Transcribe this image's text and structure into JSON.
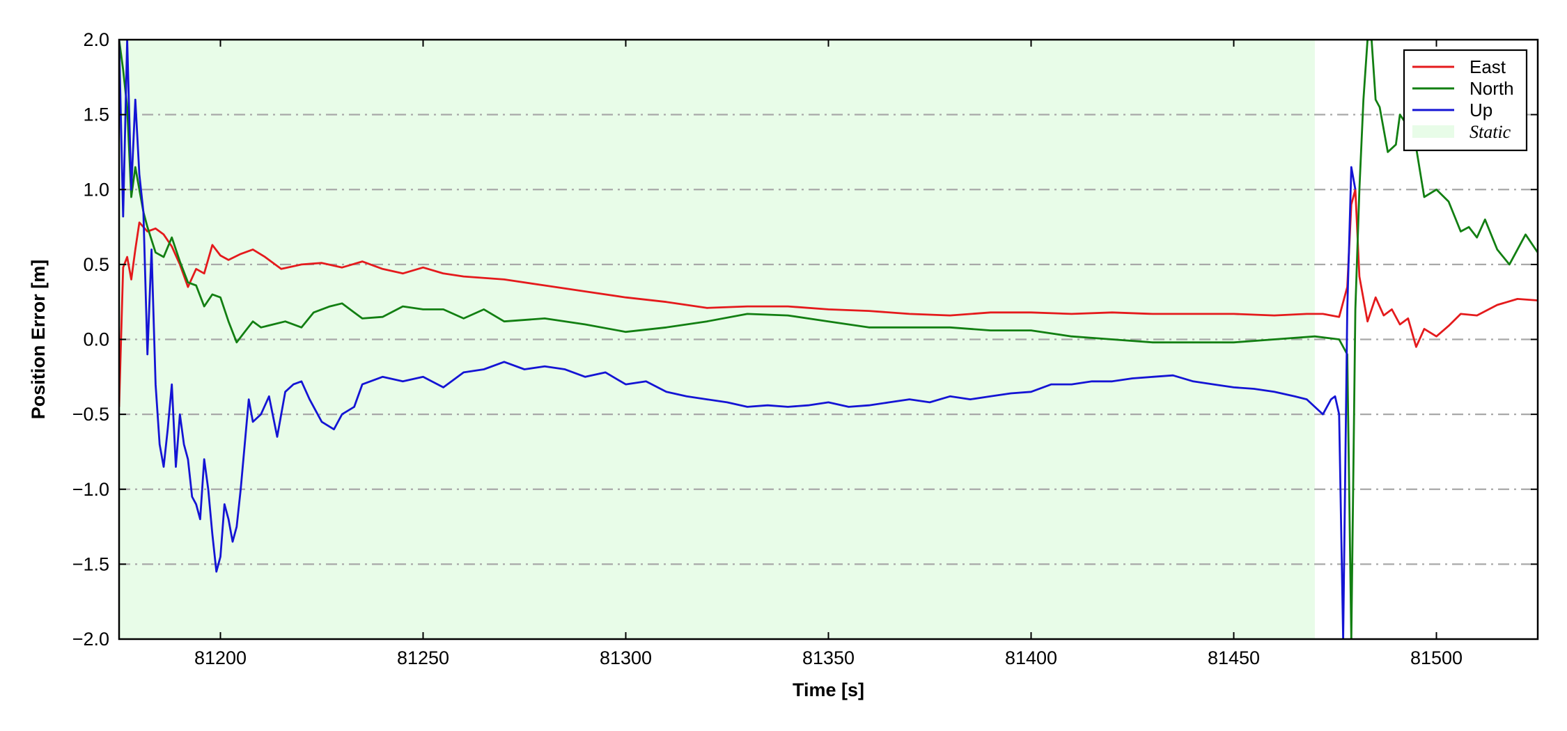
{
  "chart_data": {
    "type": "line",
    "xlabel": "Time [s]",
    "ylabel": "Position Error [m]",
    "xlim": [
      81175,
      81525
    ],
    "ylim": [
      -2.0,
      2.0
    ],
    "xticks": [
      81200,
      81250,
      81300,
      81350,
      81400,
      81450,
      81500
    ],
    "xtick_labels": [
      "81200",
      "81250",
      "81300",
      "81350",
      "81400",
      "81450",
      "81500"
    ],
    "yticks": [
      -2.0,
      -1.5,
      -1.0,
      -0.5,
      0.0,
      0.5,
      1.0,
      1.5,
      2.0
    ],
    "ytick_labels": [
      "−2.0",
      "−1.5",
      "−1.0",
      "−0.5",
      "0.0",
      "0.5",
      "1.0",
      "1.5",
      "2.0"
    ],
    "grid": "horizontal dash-dot",
    "legend_position": "top-right",
    "shaded_region": {
      "label": "Static",
      "x_start": 81175,
      "x_end": 81470,
      "color": "#e8fce8"
    },
    "series": [
      {
        "name": "East",
        "color": "#e41a1c",
        "x": [
          81175,
          81176,
          81177,
          81178,
          81179,
          81180,
          81182,
          81184,
          81186,
          81188,
          81190,
          81192,
          81194,
          81196,
          81198,
          81200,
          81202,
          81205,
          81208,
          81211,
          81215,
          81220,
          81225,
          81230,
          81235,
          81240,
          81245,
          81250,
          81255,
          81260,
          81270,
          81280,
          81290,
          81300,
          81310,
          81320,
          81330,
          81340,
          81350,
          81360,
          81370,
          81380,
          81390,
          81400,
          81410,
          81420,
          81430,
          81440,
          81450,
          81460,
          81468,
          81472,
          81476,
          81478,
          81479,
          81480,
          81481,
          81483,
          81485,
          81487,
          81489,
          81491,
          81493,
          81495,
          81497,
          81500,
          81503,
          81506,
          81510,
          81515,
          81520,
          81525
        ],
        "y": [
          -0.45,
          0.48,
          0.55,
          0.4,
          0.6,
          0.78,
          0.72,
          0.74,
          0.7,
          0.62,
          0.5,
          0.35,
          0.47,
          0.44,
          0.63,
          0.56,
          0.53,
          0.57,
          0.6,
          0.55,
          0.47,
          0.5,
          0.51,
          0.48,
          0.52,
          0.47,
          0.44,
          0.48,
          0.44,
          0.42,
          0.4,
          0.36,
          0.32,
          0.28,
          0.25,
          0.21,
          0.22,
          0.22,
          0.2,
          0.19,
          0.17,
          0.16,
          0.18,
          0.18,
          0.17,
          0.18,
          0.17,
          0.17,
          0.17,
          0.16,
          0.17,
          0.17,
          0.15,
          0.35,
          0.9,
          1.0,
          0.42,
          0.12,
          0.28,
          0.16,
          0.2,
          0.1,
          0.14,
          -0.05,
          0.07,
          0.02,
          0.09,
          0.17,
          0.16,
          0.23,
          0.27,
          0.26
        ]
      },
      {
        "name": "North",
        "color": "#127f12",
        "x": [
          81175,
          81176,
          81177,
          81178,
          81179,
          81180,
          81181,
          81182,
          81184,
          81186,
          81188,
          81190,
          81192,
          81194,
          81196,
          81198,
          81200,
          81202,
          81204,
          81206,
          81208,
          81210,
          81213,
          81216,
          81220,
          81223,
          81227,
          81230,
          81235,
          81240,
          81245,
          81250,
          81255,
          81260,
          81265,
          81270,
          81280,
          81290,
          81300,
          81310,
          81320,
          81330,
          81340,
          81350,
          81360,
          81370,
          81380,
          81390,
          81400,
          81410,
          81420,
          81430,
          81440,
          81450,
          81460,
          81470,
          81476,
          81478,
          81479,
          81480,
          81481,
          81482,
          81483,
          81484,
          81485,
          81486,
          81488,
          81490,
          81491,
          81493,
          81495,
          81497,
          81500,
          81503,
          81506,
          81508,
          81510,
          81512,
          81515,
          81518,
          81522,
          81525
        ],
        "y": [
          2.0,
          1.8,
          1.55,
          0.95,
          1.15,
          1.0,
          0.85,
          0.75,
          0.58,
          0.55,
          0.68,
          0.52,
          0.38,
          0.36,
          0.22,
          0.3,
          0.28,
          0.12,
          -0.02,
          0.05,
          0.12,
          0.08,
          0.1,
          0.12,
          0.08,
          0.18,
          0.22,
          0.24,
          0.14,
          0.15,
          0.22,
          0.2,
          0.2,
          0.14,
          0.2,
          0.12,
          0.14,
          0.1,
          0.05,
          0.08,
          0.12,
          0.17,
          0.16,
          0.12,
          0.08,
          0.08,
          0.08,
          0.06,
          0.06,
          0.02,
          0.0,
          -0.02,
          -0.02,
          -0.02,
          0.0,
          0.02,
          0.0,
          -0.1,
          -2.0,
          0.2,
          1.0,
          1.6,
          2.0,
          2.0,
          1.6,
          1.55,
          1.25,
          1.3,
          1.5,
          1.42,
          1.28,
          0.95,
          1.0,
          0.92,
          0.72,
          0.75,
          0.68,
          0.8,
          0.6,
          0.5,
          0.7,
          0.58
        ]
      },
      {
        "name": "Up",
        "color": "#1414d4",
        "x": [
          81175,
          81176,
          81177,
          81178,
          81179,
          81180,
          81181,
          81182,
          81183,
          81184,
          81185,
          81186,
          81187,
          81188,
          81189,
          81190,
          81191,
          81192,
          81193,
          81194,
          81195,
          81196,
          81197,
          81198,
          81199,
          81200,
          81201,
          81202,
          81203,
          81204,
          81205,
          81206,
          81207,
          81208,
          81210,
          81212,
          81214,
          81216,
          81218,
          81220,
          81222,
          81225,
          81228,
          81230,
          81233,
          81235,
          81240,
          81245,
          81250,
          81255,
          81260,
          81265,
          81270,
          81275,
          81280,
          81285,
          81290,
          81295,
          81300,
          81305,
          81310,
          81315,
          81320,
          81325,
          81330,
          81335,
          81340,
          81345,
          81350,
          81355,
          81360,
          81365,
          81370,
          81375,
          81380,
          81385,
          81390,
          81395,
          81400,
          81405,
          81410,
          81415,
          81420,
          81425,
          81430,
          81435,
          81440,
          81445,
          81450,
          81455,
          81460,
          81465,
          81468,
          81470,
          81472,
          81474,
          81475,
          81476,
          81477,
          81478,
          81479,
          81480
        ],
        "y": [
          2.0,
          0.82,
          2.0,
          1.0,
          1.6,
          1.1,
          0.85,
          -0.1,
          0.6,
          -0.3,
          -0.7,
          -0.85,
          -0.6,
          -0.3,
          -0.85,
          -0.5,
          -0.7,
          -0.8,
          -1.05,
          -1.1,
          -1.2,
          -0.8,
          -1.0,
          -1.3,
          -1.55,
          -1.45,
          -1.1,
          -1.2,
          -1.35,
          -1.25,
          -1.0,
          -0.7,
          -0.4,
          -0.55,
          -0.5,
          -0.38,
          -0.65,
          -0.35,
          -0.3,
          -0.28,
          -0.4,
          -0.55,
          -0.6,
          -0.5,
          -0.45,
          -0.3,
          -0.25,
          -0.28,
          -0.25,
          -0.32,
          -0.22,
          -0.2,
          -0.15,
          -0.2,
          -0.18,
          -0.2,
          -0.25,
          -0.22,
          -0.3,
          -0.28,
          -0.35,
          -0.38,
          -0.4,
          -0.42,
          -0.45,
          -0.44,
          -0.45,
          -0.44,
          -0.42,
          -0.45,
          -0.44,
          -0.42,
          -0.4,
          -0.42,
          -0.38,
          -0.4,
          -0.38,
          -0.36,
          -0.35,
          -0.3,
          -0.3,
          -0.28,
          -0.28,
          -0.26,
          -0.25,
          -0.24,
          -0.28,
          -0.3,
          -0.32,
          -0.33,
          -0.35,
          -0.38,
          -0.4,
          -0.45,
          -0.5,
          -0.4,
          -0.38,
          -0.5,
          -2.0,
          0.2,
          1.15,
          1.0
        ]
      }
    ]
  }
}
